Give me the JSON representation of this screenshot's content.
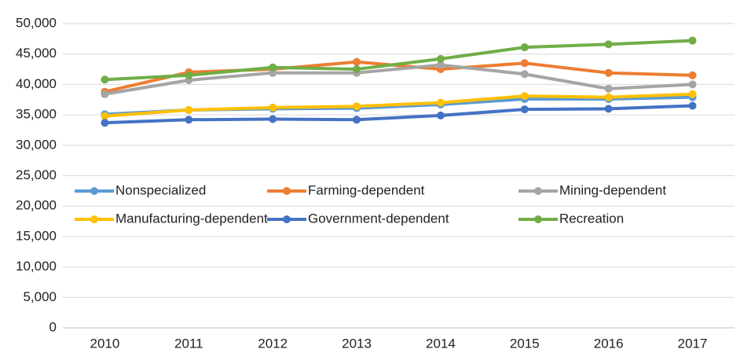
{
  "chart_data": {
    "type": "line",
    "categories": [
      "2010",
      "2011",
      "2012",
      "2013",
      "2014",
      "2015",
      "2016",
      "2017"
    ],
    "series": [
      {
        "name": "Nonspecialized",
        "color": "#5b9bd5",
        "values": [
          35100,
          35800,
          36000,
          36100,
          36700,
          37600,
          37600,
          37900
        ]
      },
      {
        "name": "Farming-dependent",
        "color": "#ed7d31",
        "values": [
          38800,
          42000,
          42500,
          43700,
          42500,
          43500,
          41900,
          41500
        ]
      },
      {
        "name": "Mining-dependent",
        "color": "#a5a5a5",
        "values": [
          38400,
          40700,
          41900,
          41900,
          43200,
          41700,
          39300,
          40000
        ]
      },
      {
        "name": "Manufacturing-dependent",
        "color": "#ffc000",
        "values": [
          34800,
          35800,
          36200,
          36400,
          37000,
          38100,
          37900,
          38400
        ]
      },
      {
        "name": "Government-dependent",
        "color": "#4472c4",
        "values": [
          33700,
          34200,
          34300,
          34200,
          34900,
          35900,
          36000,
          36500
        ]
      },
      {
        "name": "Recreation",
        "color": "#70ad47",
        "values": [
          40800,
          41500,
          42800,
          42500,
          44200,
          46100,
          46600,
          47200
        ]
      }
    ],
    "ylim": [
      0,
      50000
    ],
    "yticks": [
      0,
      {
        "value": 5000,
        "label": "5,000"
      },
      {
        "value": 10000,
        "label": "10,000"
      },
      {
        "value": 15000,
        "label": "15,000"
      },
      {
        "value": 20000,
        "label": "20,000"
      },
      {
        "value": 25000,
        "label": "25,000"
      },
      {
        "value": 30000,
        "label": "30,000"
      },
      {
        "value": 35000,
        "label": "35,000"
      },
      {
        "value": 40000,
        "label": "40,000"
      },
      {
        "value": 45000,
        "label": "45,000"
      },
      {
        "value": 50000,
        "label": "50,000"
      }
    ],
    "grid": true
  }
}
